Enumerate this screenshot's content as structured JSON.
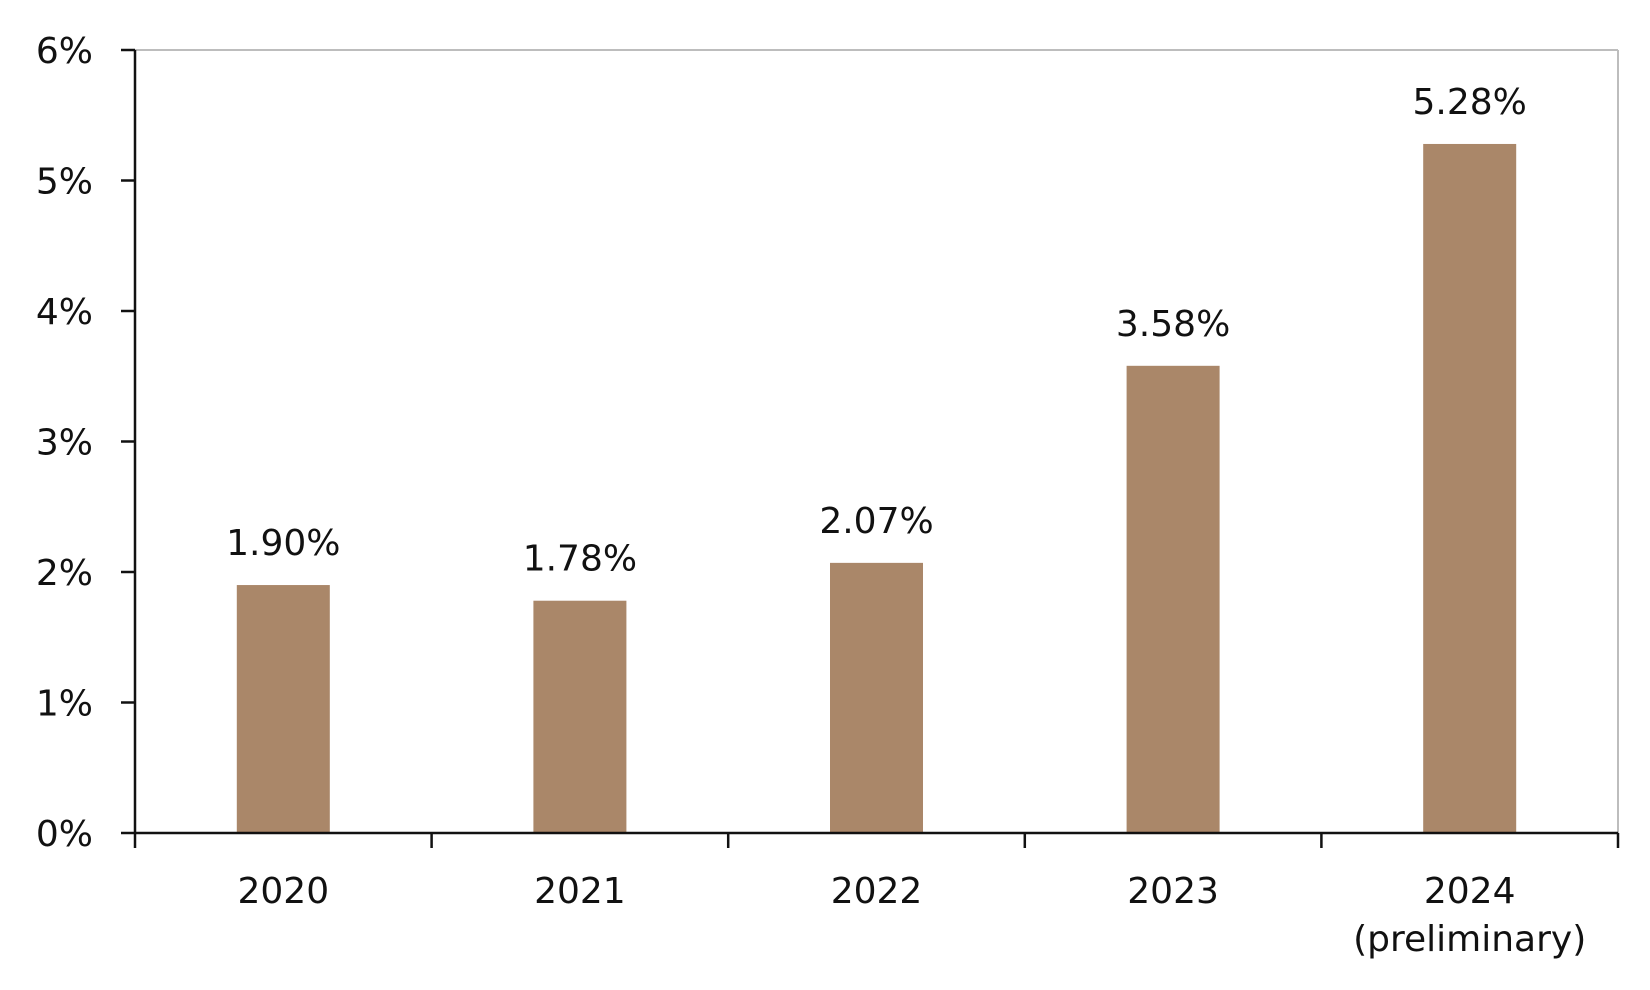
{
  "chart_data": {
    "type": "bar",
    "title": "",
    "xlabel": "",
    "ylabel": "",
    "categories": [
      [
        "2020"
      ],
      [
        "2021"
      ],
      [
        "2022"
      ],
      [
        "2023"
      ],
      [
        "2024",
        "(preliminary)"
      ]
    ],
    "values": [
      1.9,
      1.78,
      2.07,
      3.58,
      5.28
    ],
    "data_labels": [
      "1.90%",
      "1.78%",
      "2.07%",
      "3.58%",
      "5.28%"
    ],
    "ylim": [
      0,
      6
    ],
    "yticks": [
      0,
      1,
      2,
      3,
      4,
      5,
      6
    ],
    "ytick_labels": [
      "0%",
      "1%",
      "2%",
      "3%",
      "4%",
      "5%",
      "6%"
    ],
    "grid": false,
    "legend": "none",
    "colors": {
      "bar": "#AA8769",
      "axis": "#111111",
      "frame": "#BDBDBD"
    }
  }
}
